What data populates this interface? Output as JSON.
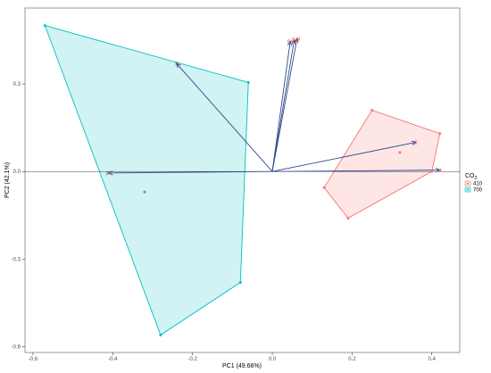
{
  "chart_data": {
    "type": "scatter",
    "xlabel": "PC1 (49.66%)",
    "ylabel": "PC2 (42.1%)",
    "xlim": [
      -0.62,
      0.47
    ],
    "ylim": [
      -0.62,
      0.56
    ],
    "x_ticks": [
      -0.6,
      -0.4,
      -0.2,
      0.0,
      0.2,
      0.4
    ],
    "y_ticks": [
      -0.6,
      -0.3,
      0.0,
      0.3
    ],
    "x_tick_labels": [
      "-0.6",
      "-0.4",
      "-0.2",
      "0.0",
      "0.2",
      "0.4"
    ],
    "y_tick_labels": [
      "-0.6",
      "-0.3",
      "0.0",
      "0.3"
    ],
    "grid": false,
    "legend": {
      "title_base": "CO",
      "title_sub": "2",
      "placement": "right"
    },
    "series": [
      {
        "name": "410",
        "color": "#f8766d",
        "points": [
          [
            0.25,
            0.21
          ],
          [
            0.42,
            0.13
          ],
          [
            0.4,
            0.0
          ],
          [
            0.19,
            -0.16
          ],
          [
            0.13,
            -0.055
          ],
          [
            0.32,
            0.065
          ]
        ],
        "hull": [
          [
            0.25,
            0.21
          ],
          [
            0.42,
            0.13
          ],
          [
            0.4,
            0.0
          ],
          [
            0.19,
            -0.16
          ],
          [
            0.13,
            -0.055
          ]
        ]
      },
      {
        "name": "700",
        "color": "#00bfc4",
        "points": [
          [
            -0.57,
            0.5
          ],
          [
            -0.06,
            0.305
          ],
          [
            -0.08,
            -0.38
          ],
          [
            -0.28,
            -0.56
          ],
          [
            -0.41,
            -0.005
          ],
          [
            -0.32,
            -0.07
          ]
        ],
        "hull": [
          [
            -0.57,
            0.5
          ],
          [
            -0.06,
            0.305
          ],
          [
            -0.08,
            -0.38
          ],
          [
            -0.28,
            -0.56
          ]
        ]
      }
    ],
    "loadings": [
      {
        "label": "Tr",
        "x": -0.24,
        "y": 0.37
      },
      {
        "label": "Pn",
        "x": 0.045,
        "y": 0.445
      },
      {
        "label": "Gs",
        "x": 0.055,
        "y": 0.45
      },
      {
        "label": "LAI",
        "x": 0.062,
        "y": 0.455
      },
      {
        "label": "DT",
        "x": -0.41,
        "y": -0.005
      },
      {
        "label": "C",
        "x": 0.36,
        "y": 0.1
      },
      {
        "label": "H",
        "x": 0.42,
        "y": 0.005
      }
    ],
    "arrow_color": "#2e4a8c",
    "label_color": "#d62728"
  }
}
